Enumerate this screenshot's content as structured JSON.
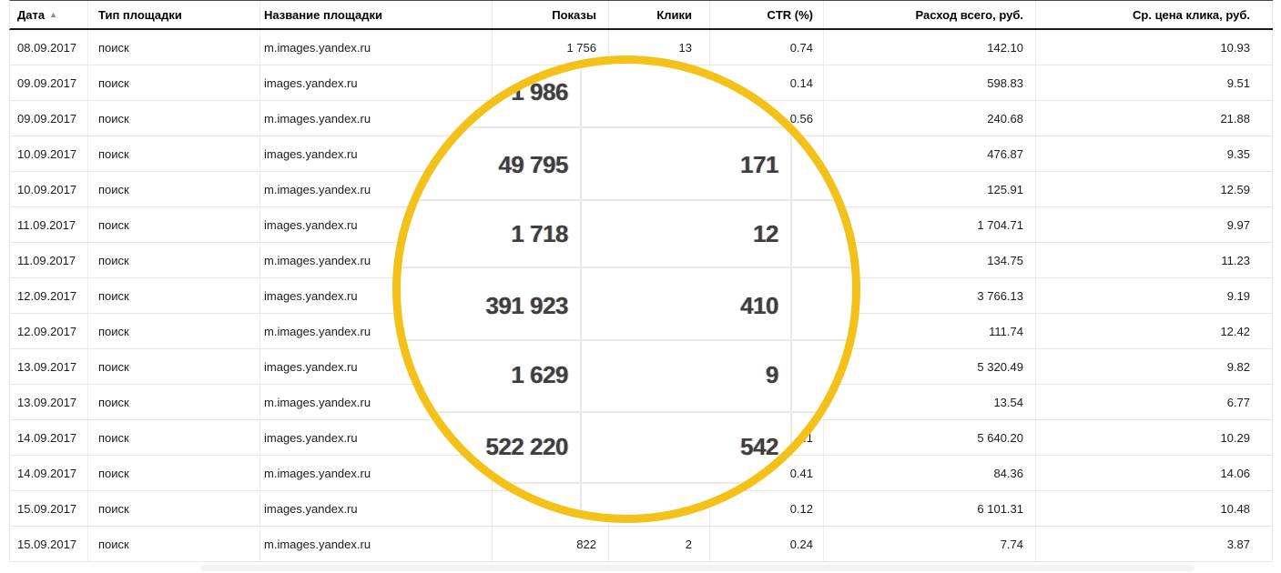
{
  "table": {
    "sort_icon": "▲",
    "columns": [
      {
        "label": "Дата",
        "sorted": "asc"
      },
      {
        "label": "Тип площадки"
      },
      {
        "label": "Название площадки"
      },
      {
        "label": "Показы"
      },
      {
        "label": "Клики"
      },
      {
        "label": "CTR (%)"
      },
      {
        "label": "Расход всего, руб."
      },
      {
        "label": "Ср. цена клика, руб."
      }
    ],
    "rows": [
      {
        "date": "08.09.2017",
        "type": "поиск",
        "site": "m.images.yandex.ru",
        "impressions": "1 756",
        "clicks": "13",
        "ctr": "0.74",
        "cost": "142.10",
        "cpc": "10.93"
      },
      {
        "date": "09.09.2017",
        "type": "поиск",
        "site": "images.yandex.ru",
        "impressions": "",
        "clicks": "",
        "ctr": "0.14",
        "cost": "598.83",
        "cpc": "9.51"
      },
      {
        "date": "09.09.2017",
        "type": "поиск",
        "site": "m.images.yandex.ru",
        "impressions": "",
        "clicks": "",
        "ctr": "0.56",
        "cost": "240.68",
        "cpc": "21.88"
      },
      {
        "date": "10.09.2017",
        "type": "поиск",
        "site": "images.yandex.ru",
        "impressions": "",
        "clicks": "",
        "ctr": "",
        "cost": "476.87",
        "cpc": "9.35"
      },
      {
        "date": "10.09.2017",
        "type": "поиск",
        "site": "m.images.yandex.ru",
        "impressions": "",
        "clicks": "",
        "ctr": "",
        "cost": "125.91",
        "cpc": "12.59"
      },
      {
        "date": "11.09.2017",
        "type": "поиск",
        "site": "images.yandex.ru",
        "impressions": "",
        "clicks": "",
        "ctr": "",
        "cost": "1 704.71",
        "cpc": "9.97"
      },
      {
        "date": "11.09.2017",
        "type": "поиск",
        "site": "m.images.yandex.ru",
        "impressions": "",
        "clicks": "",
        "ctr": "",
        "cost": "134.75",
        "cpc": "11.23"
      },
      {
        "date": "12.09.2017",
        "type": "поиск",
        "site": "images.yandex.ru",
        "impressions": "",
        "clicks": "",
        "ctr": "",
        "cost": "3 766.13",
        "cpc": "9.19"
      },
      {
        "date": "12.09.2017",
        "type": "поиск",
        "site": "m.images.yandex.ru",
        "impressions": "",
        "clicks": "",
        "ctr": "",
        "cost": "111.74",
        "cpc": "12.42"
      },
      {
        "date": "13.09.2017",
        "type": "поиск",
        "site": "images.yandex.ru",
        "impressions": "",
        "clicks": "",
        "ctr": "",
        "cost": "5 320.49",
        "cpc": "9.82"
      },
      {
        "date": "13.09.2017",
        "type": "поиск",
        "site": "m.images.yandex.ru",
        "impressions": "",
        "clicks": "",
        "ctr": "",
        "cost": "13.54",
        "cpc": "6.77"
      },
      {
        "date": "14.09.2017",
        "type": "поиск",
        "site": "images.yandex.ru",
        "impressions": "",
        "clicks": "",
        "ctr": "0.1",
        "cost": "5 640.20",
        "cpc": "10.29"
      },
      {
        "date": "14.09.2017",
        "type": "поиск",
        "site": "m.images.yandex.ru",
        "impressions": "",
        "clicks": "",
        "ctr": "0.41",
        "cost": "84.36",
        "cpc": "14.06"
      },
      {
        "date": "15.09.2017",
        "type": "поиск",
        "site": "images.yandex.ru",
        "impressions": "",
        "clicks": "",
        "ctr": "0.12",
        "cost": "6 101.31",
        "cpc": "10.48"
      },
      {
        "date": "15.09.2017",
        "type": "поиск",
        "site": "m.images.yandex.ru",
        "impressions": "822",
        "clicks": "2",
        "ctr": "0.24",
        "cost": "7.74",
        "cpc": "3.87"
      }
    ]
  },
  "lens": {
    "shape": "circle",
    "border_color": "#F3C117",
    "magnified_rows": [
      {
        "impressions": "1 986",
        "clicks": ""
      },
      {
        "impressions": "49 795",
        "clicks": "171"
      },
      {
        "impressions": "1 718",
        "clicks": "12"
      },
      {
        "impressions": "391 923",
        "clicks": "410"
      },
      {
        "impressions": "1 629",
        "clicks": "9"
      },
      {
        "impressions": "522 220",
        "clicks": "542"
      }
    ]
  }
}
